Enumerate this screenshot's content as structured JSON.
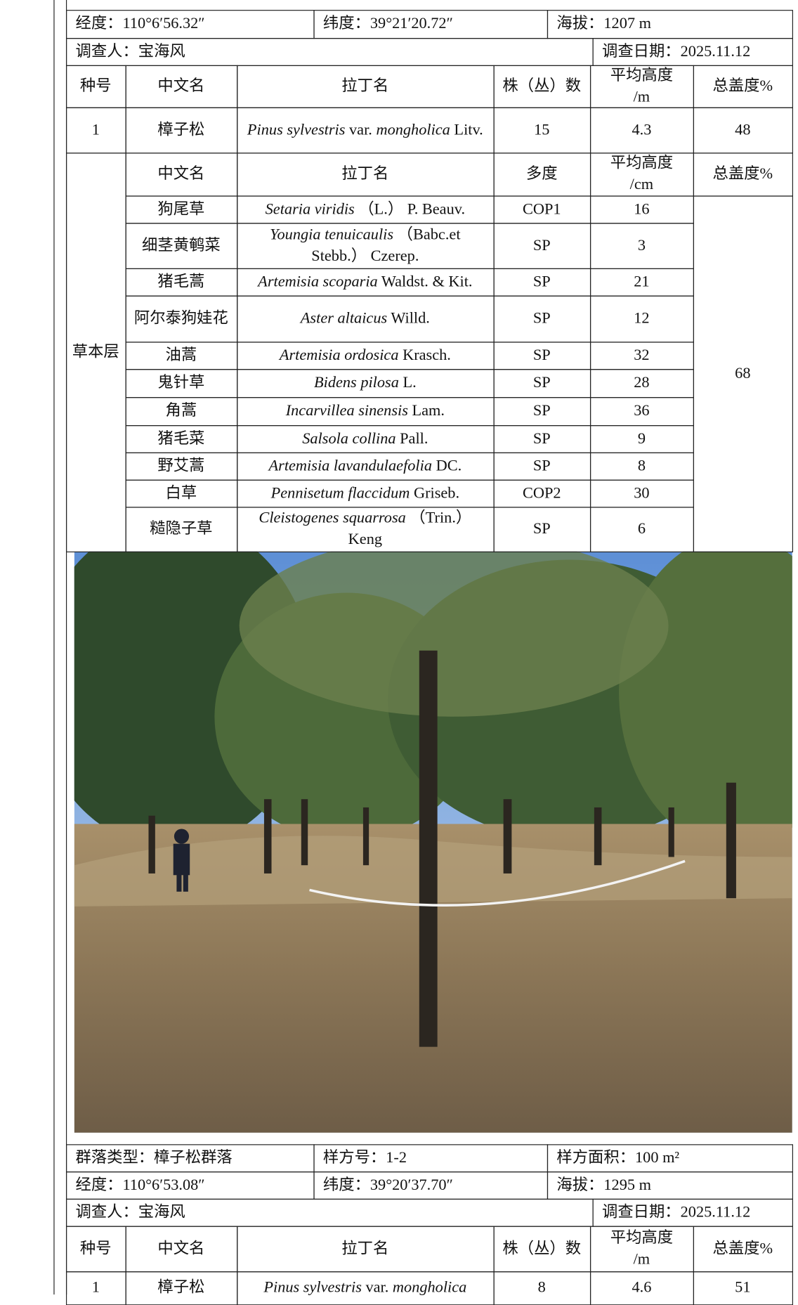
{
  "plot1": {
    "longitude": "经度：110°6′56.32″",
    "latitude": "纬度：39°21′20.72″",
    "altitude": "海拔：1207 m",
    "investigator": "调查人：宝海风",
    "date": "调查日期：2025.11.12",
    "tree_header": [
      "种号",
      "中文名",
      "拉丁名",
      "株（丛）数",
      "平均高度\n/m",
      "总盖度%"
    ],
    "trees": [
      {
        "no": 1,
        "name": "樟子松",
        "latin": [
          {
            "text": "Pinus sylvestris",
            "italic": true
          },
          {
            "text": " var. ",
            "italic": false
          },
          {
            "text": "mongholica",
            "italic": true
          },
          {
            "text": " Litv.",
            "italic": false
          }
        ],
        "count": 15,
        "height": 4.3,
        "cover": 48
      }
    ],
    "herb_layer": "草本层",
    "herb_header": [
      "中文名",
      "拉丁名",
      "多度",
      "平均高度\n/cm",
      "总盖度%"
    ],
    "herb_cover": 68,
    "herbs": [
      {
        "name": "狗尾草",
        "latin": [
          {
            "text": "Setaria viridis",
            "italic": true
          },
          {
            "text": " （L.） P. Beauv.",
            "italic": false
          }
        ],
        "abundance": "COP1",
        "height": 16
      },
      {
        "name": "细茎黄鹌菜",
        "latin": [
          {
            "text": "Youngia tenuicaulis",
            "italic": true
          },
          {
            "text": " （Babc.et Stebb.） Czerep.",
            "italic": false
          }
        ],
        "abundance": "SP",
        "height": 3
      },
      {
        "name": "猪毛蒿",
        "latin": [
          {
            "text": "Artemisia scoparia",
            "italic": true
          },
          {
            "text": " Waldst. & Kit.",
            "italic": false
          }
        ],
        "abundance": "SP",
        "height": 21
      },
      {
        "name": "阿尔泰狗娃花",
        "latin": [
          {
            "text": "Aster altaicus",
            "italic": true
          },
          {
            "text": " Willd.",
            "italic": false
          }
        ],
        "abundance": "SP",
        "height": 12
      },
      {
        "name": "油蒿",
        "latin": [
          {
            "text": "Artemisia ordosica",
            "italic": true
          },
          {
            "text": " Krasch.",
            "italic": false
          }
        ],
        "abundance": "SP",
        "height": 32
      },
      {
        "name": "鬼针草",
        "latin": [
          {
            "text": "Bidens pilosa",
            "italic": true
          },
          {
            "text": " L.",
            "italic": false
          }
        ],
        "abundance": "SP",
        "height": 28
      },
      {
        "name": "角蒿",
        "latin": [
          {
            "text": "Incarvillea sinensis",
            "italic": true
          },
          {
            "text": " Lam.",
            "italic": false
          }
        ],
        "abundance": "SP",
        "height": 36
      },
      {
        "name": "猪毛菜",
        "latin": [
          {
            "text": "Salsola collina",
            "italic": true
          },
          {
            "text": " Pall.",
            "italic": false
          }
        ],
        "abundance": "SP",
        "height": 9
      },
      {
        "name": "野艾蒿",
        "latin": [
          {
            "text": "Artemisia lavandulaefolia",
            "italic": true
          },
          {
            "text": " DC.",
            "italic": false
          }
        ],
        "abundance": "SP",
        "height": 8
      },
      {
        "name": "白草",
        "latin": [
          {
            "text": "Pennisetum flaccidum",
            "italic": true
          },
          {
            "text": " Griseb.",
            "italic": false
          }
        ],
        "abundance": "COP2",
        "height": 30
      },
      {
        "name": "糙隐子草",
        "latin": [
          {
            "text": "Cleistogenes squarrosa",
            "italic": true
          },
          {
            "text": " （Trin.） Keng",
            "italic": false
          }
        ],
        "abundance": "SP",
        "height": 6
      }
    ]
  },
  "plot2": {
    "community": "群落类型：樟子松群落",
    "plot_no": "样方号：1-2",
    "area": "样方面积：100 m²",
    "longitude": "经度：110°6′53.08″",
    "latitude": "纬度：39°20′37.70″",
    "altitude": "海拔：1295 m",
    "investigator": "调查人：宝海风",
    "date": "调查日期：2025.11.12",
    "tree_header": [
      "种号",
      "中文名",
      "拉丁名",
      "株（丛）数",
      "平均高度\n/m",
      "总盖度%"
    ],
    "trees": [
      {
        "no": 1,
        "name": "樟子松",
        "latin": [
          {
            "text": "Pinus sylvestris",
            "italic": true
          },
          {
            "text": " var. ",
            "italic": false
          },
          {
            "text": "mongholica",
            "italic": true
          }
        ],
        "count": 8,
        "height": 4.6,
        "cover": 51
      }
    ]
  }
}
